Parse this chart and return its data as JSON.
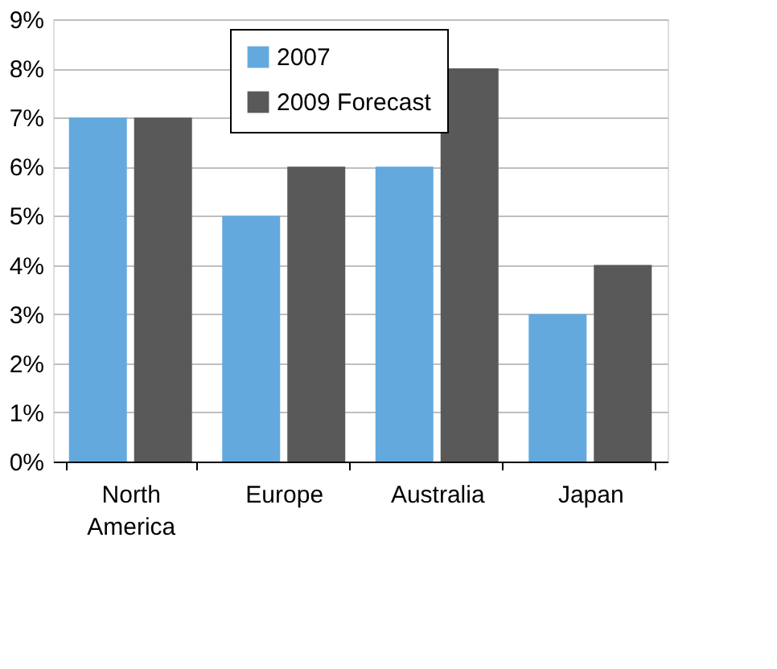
{
  "chart_data": {
    "type": "bar",
    "categories": [
      "North America",
      "Europe",
      "Australia",
      "Japan"
    ],
    "series": [
      {
        "name": "2007",
        "color": "#63a9dd",
        "values": [
          7,
          5,
          6,
          3
        ]
      },
      {
        "name": "2009 Forecast",
        "color": "#595959",
        "values": [
          7,
          6,
          8,
          4
        ]
      }
    ],
    "ylim": [
      0,
      9
    ],
    "yticks": [
      {
        "value": 0,
        "label": "0%"
      },
      {
        "value": 1,
        "label": "1%"
      },
      {
        "value": 2,
        "label": "2%"
      },
      {
        "value": 3,
        "label": "3%"
      },
      {
        "value": 4,
        "label": "4%"
      },
      {
        "value": 5,
        "label": "5%"
      },
      {
        "value": 6,
        "label": "6%"
      },
      {
        "value": 7,
        "label": "7%"
      },
      {
        "value": 8,
        "label": "8%"
      },
      {
        "value": 9,
        "label": "9%"
      }
    ],
    "grid": "y",
    "legend": "top left"
  }
}
